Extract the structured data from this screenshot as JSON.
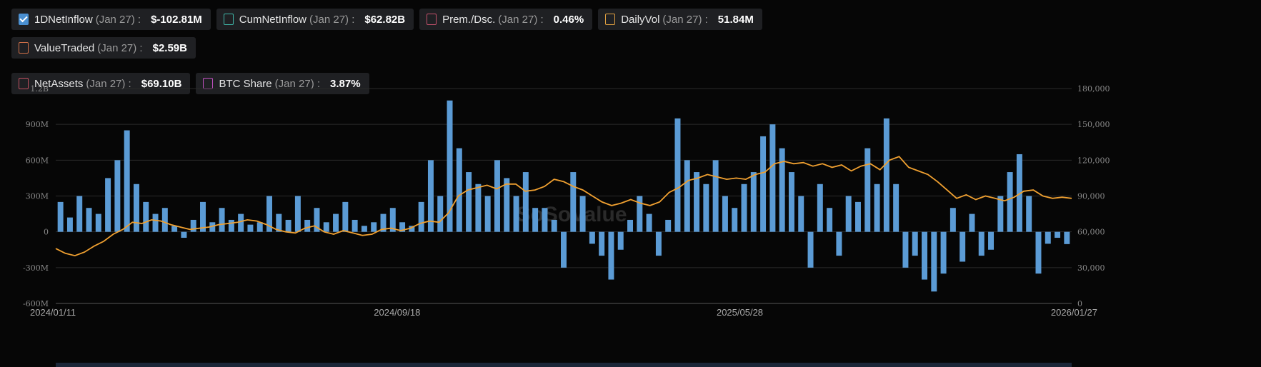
{
  "legend": [
    {
      "label": "1DNetInflow",
      "date": "(Jan 27) :",
      "value": "$-102.81M",
      "color": "#4a8fd0",
      "checked": true
    },
    {
      "label": "CumNetInflow",
      "date": "(Jan 27) :",
      "value": "$62.82B",
      "color": "#3fb6a8",
      "checked": false
    },
    {
      "label": "Prem./Dsc.",
      "date": "(Jan 27) :",
      "value": "0.46%",
      "color": "#c0506a",
      "checked": false
    },
    {
      "label": "DailyVol",
      "date": "(Jan 27) :",
      "value": "51.84M",
      "color": "#e0a040",
      "checked": false
    },
    {
      "label": "ValueTraded",
      "date": "(Jan 27) :",
      "value": "$2.59B",
      "color": "#d07048",
      "checked": false
    },
    {
      "label": "NetAssets",
      "date": "(Jan 27) :",
      "value": "$69.10B",
      "color": "#c05060",
      "checked": false
    },
    {
      "label": "BTC Share",
      "date": "(Jan 27) :",
      "value": "3.87%",
      "color": "#c050c0",
      "checked": false
    }
  ],
  "watermark": "SoSoValue",
  "chart_data": {
    "type": "bar+line",
    "x_range": [
      "2024/01/11",
      "2026/01/27"
    ],
    "xticks": [
      "2024/01/11",
      "2024/09/18",
      "2025/05/28",
      "2026/01/27"
    ],
    "left_axis": {
      "ylim": [
        -600,
        1200
      ],
      "ticks": [
        "-600M",
        "-300M",
        "0",
        "300M",
        "600M",
        "900M",
        "1.2B"
      ],
      "unit": "M"
    },
    "right_axis": {
      "ylim": [
        0,
        180000
      ],
      "ticks": [
        "0",
        "30,000",
        "60,000",
        "90,000",
        "120,000",
        "150,000",
        "180,000"
      ]
    },
    "grid": true,
    "colors": {
      "bars": "#5b9bd5",
      "line": "#f0a030"
    },
    "series": [
      {
        "name": "1DNetInflow",
        "axis": "left",
        "values": [
          250,
          120,
          300,
          200,
          150,
          450,
          600,
          850,
          400,
          250,
          150,
          200,
          50,
          -50,
          100,
          250,
          80,
          200,
          100,
          150,
          60,
          80,
          300,
          150,
          100,
          300,
          100,
          200,
          80,
          150,
          250,
          100,
          50,
          80,
          150,
          200,
          80,
          50,
          250,
          600,
          300,
          1100,
          700,
          500,
          400,
          300,
          600,
          450,
          300,
          500,
          200,
          200,
          100,
          -300,
          500,
          300,
          -100,
          -200,
          -400,
          -150,
          100,
          300,
          150,
          -200,
          100,
          950,
          600,
          500,
          400,
          600,
          300,
          200,
          400,
          500,
          800,
          900,
          700,
          500,
          300,
          -300,
          400,
          200,
          -200,
          300,
          250,
          700,
          400,
          950,
          400,
          -300,
          -200,
          -400,
          -500,
          -350,
          200,
          -250,
          150,
          -200,
          -150,
          300,
          500,
          650,
          300,
          -350,
          -100,
          -50,
          -102.81
        ]
      },
      {
        "axis": "right",
        "values": [
          46000,
          42000,
          40000,
          43000,
          48000,
          52000,
          58000,
          62000,
          68000,
          67000,
          70000,
          69000,
          66000,
          64000,
          62000,
          63000,
          64000,
          66000,
          67000,
          68000,
          70000,
          69000,
          66000,
          62000,
          60000,
          59000,
          63000,
          65000,
          60000,
          58000,
          61000,
          59000,
          57000,
          58000,
          62000,
          63000,
          61000,
          63000,
          67000,
          69000,
          68000,
          76000,
          90000,
          95000,
          97000,
          99000,
          96000,
          100000,
          100000,
          94000,
          95000,
          98000,
          104000,
          102000,
          98000,
          95000,
          90000,
          85000,
          82000,
          84000,
          87000,
          84000,
          82000,
          85000,
          93000,
          97000,
          103000,
          105000,
          108000,
          106000,
          104000,
          105000,
          104000,
          108000,
          110000,
          117000,
          119000,
          117000,
          118000,
          115000,
          117000,
          114000,
          116000,
          111000,
          115000,
          117000,
          112000,
          120000,
          123000,
          114000,
          111000,
          108000,
          102000,
          95000,
          88000,
          91000,
          87000,
          90000,
          88000,
          86000,
          89000,
          94000,
          95000,
          90000,
          88000,
          89000,
          88000
        ]
      }
    ]
  }
}
